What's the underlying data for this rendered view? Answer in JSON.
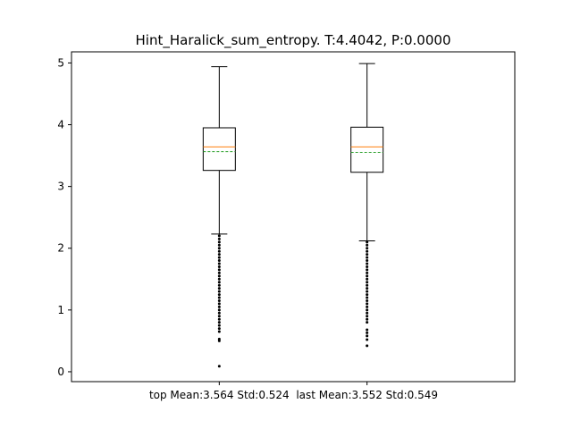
{
  "chart_data": {
    "type": "boxplot",
    "title": "Hint_Haralick_sum_entropy. T:4.4042, P:0.0000",
    "xlabel": "",
    "ylabel": "",
    "ylim": [
      -0.16,
      5.18
    ],
    "yticks": [
      0,
      1,
      2,
      3,
      4,
      5
    ],
    "categories": [
      "top Mean:3.564 Std:0.524",
      "last Mean:3.552 Std:0.549"
    ],
    "boxes": [
      {
        "label": "top Mean:3.564 Std:0.524",
        "whisker_low": 2.23,
        "q1": 3.26,
        "median": 3.64,
        "mean": 3.564,
        "q3": 3.95,
        "whisker_high": 4.94,
        "outliers": [
          0.09,
          0.5,
          0.53,
          0.65,
          0.7,
          0.75,
          0.8,
          0.85,
          0.9,
          0.95,
          1.0,
          1.05,
          1.1,
          1.15,
          1.2,
          1.25,
          1.3,
          1.35,
          1.4,
          1.45,
          1.5,
          1.55,
          1.6,
          1.65,
          1.7,
          1.75,
          1.8,
          1.85,
          1.9,
          1.95,
          2.0,
          2.05,
          2.1,
          2.15,
          2.2
        ]
      },
      {
        "label": "last Mean:3.552 Std:0.549",
        "whisker_low": 2.12,
        "q1": 3.23,
        "median": 3.64,
        "mean": 3.552,
        "q3": 3.96,
        "whisker_high": 4.99,
        "outliers": [
          0.42,
          0.52,
          0.58,
          0.63,
          0.68,
          0.8,
          0.85,
          0.9,
          0.95,
          1.0,
          1.05,
          1.1,
          1.15,
          1.2,
          1.25,
          1.3,
          1.35,
          1.4,
          1.45,
          1.5,
          1.55,
          1.6,
          1.65,
          1.7,
          1.75,
          1.8,
          1.85,
          1.9,
          1.95,
          2.0,
          2.05,
          2.1
        ]
      }
    ],
    "colors": {
      "box": "#000000",
      "median": "#ff7f0e",
      "mean": "#2ca02c",
      "flier": "#000000"
    },
    "grid": false,
    "legend": "none"
  }
}
